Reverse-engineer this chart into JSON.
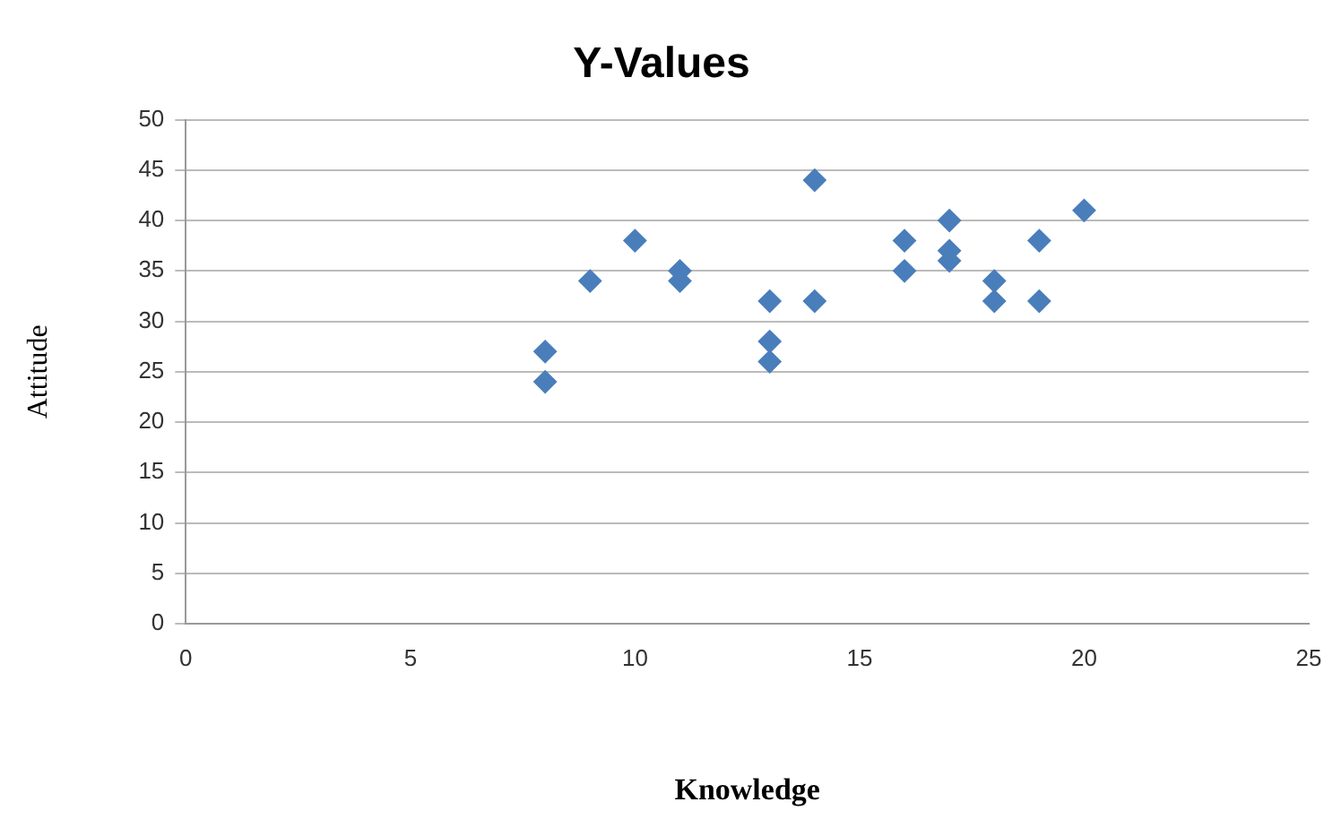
{
  "chart_data": {
    "type": "scatter",
    "title": "Y-Values",
    "xlabel": "Knowledge",
    "ylabel": "Attitude",
    "x": [
      8,
      8,
      9,
      10,
      11,
      11,
      13,
      13,
      13,
      14,
      14,
      16,
      16,
      17,
      17,
      17,
      18,
      18,
      19,
      19,
      20
    ],
    "values": [
      27,
      24,
      34,
      38,
      35,
      34,
      32,
      28,
      26,
      44,
      32,
      38,
      35,
      40,
      37,
      36,
      34,
      32,
      38,
      32,
      41
    ],
    "color": "#4a7ebb",
    "marker": "diamond",
    "grid": "y",
    "legend": false,
    "xlim": [
      0,
      25
    ],
    "xticks": [
      0,
      5,
      10,
      15,
      20,
      25
    ],
    "ylim": [
      0,
      50
    ],
    "yticks": [
      0,
      5,
      10,
      15,
      20,
      25,
      30,
      35,
      40,
      45,
      50
    ]
  }
}
